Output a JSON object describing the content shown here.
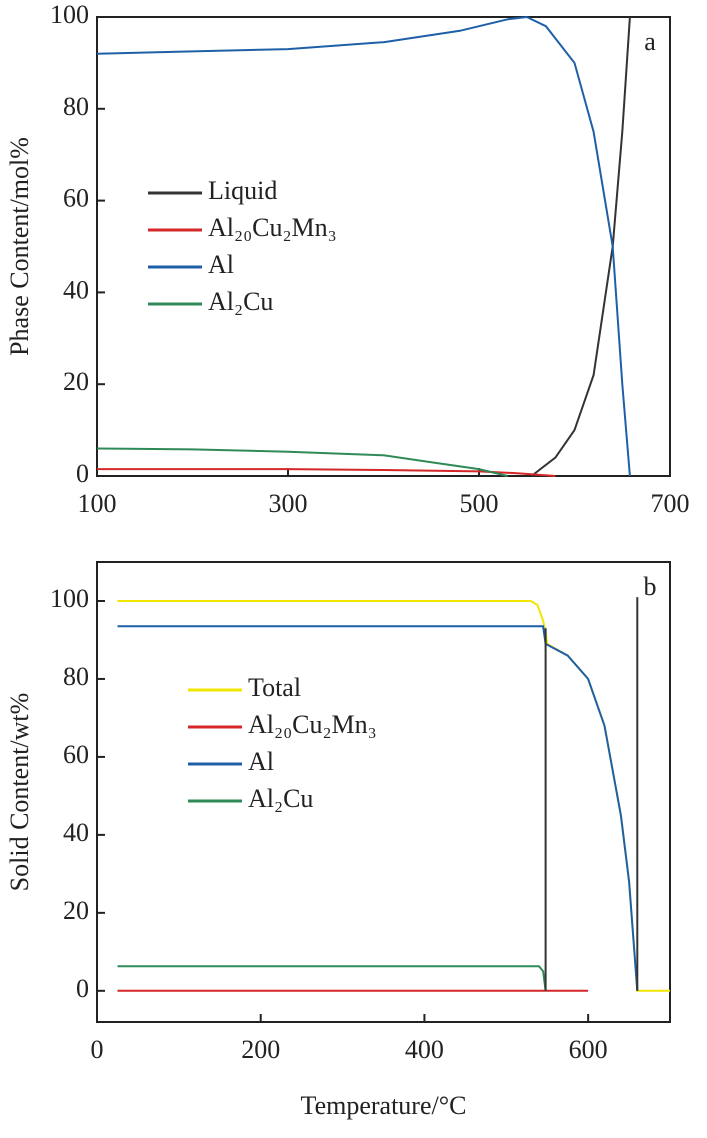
{
  "chart_data": [
    {
      "type": "line",
      "annotation": "a",
      "ylabel": "Phase Content/mol%",
      "xlim": [
        100,
        700
      ],
      "xticks": [
        100,
        300,
        500,
        700
      ],
      "ylim": [
        0,
        100
      ],
      "yticks": [
        0,
        20,
        40,
        60,
        80,
        100
      ],
      "series": [
        {
          "name": "Liquid",
          "color": "#333333",
          "x": [
            555,
            580,
            600,
            620,
            640,
            650,
            658
          ],
          "values": [
            0,
            4,
            10,
            22,
            50,
            75,
            100
          ]
        },
        {
          "name": "Al₂₀Cu₂Mn₃",
          "color": "#d62728",
          "x": [
            100,
            300,
            400,
            500,
            540,
            580
          ],
          "values": [
            1.5,
            1.5,
            1.3,
            1,
            0.6,
            0
          ]
        },
        {
          "name": "Al",
          "color": "#1f5fa8",
          "x": [
            100,
            200,
            300,
            400,
            480,
            530,
            550,
            570,
            600,
            620,
            640,
            650,
            658
          ],
          "values": [
            92,
            92.5,
            93,
            94.5,
            97,
            99.5,
            100,
            98,
            90,
            75,
            50,
            20,
            0
          ]
        },
        {
          "name": "Al₂Cu",
          "color": "#2e8b57",
          "x": [
            100,
            200,
            300,
            400,
            450,
            500,
            530
          ],
          "values": [
            6,
            5.8,
            5.3,
            4.5,
            3,
            1.5,
            0
          ]
        }
      ]
    },
    {
      "type": "line",
      "annotation": "b",
      "ylabel": "Solid Content/wt%",
      "xlabel": "Temperature/°C",
      "xlim": [
        0,
        700
      ],
      "xticks": [
        0,
        200,
        400,
        600
      ],
      "ylim": [
        -8,
        110
      ],
      "yticks": [
        0,
        20,
        40,
        60,
        80,
        100
      ],
      "series": [
        {
          "name": "Total",
          "color": "#f2e600",
          "x": [
            25,
            530,
            538,
            545,
            548,
            550,
            575,
            600,
            620,
            640,
            650,
            660,
            700
          ],
          "values": [
            100,
            100,
            99,
            95,
            92,
            89,
            86,
            80,
            68,
            45,
            28,
            0,
            0
          ]
        },
        {
          "name": "Al₂₀Cu₂Mn₃",
          "color": "#d62728",
          "x": [
            25,
            600
          ],
          "values": [
            0,
            0
          ]
        },
        {
          "name": "Al",
          "color": "#1f5fa8",
          "x": [
            25,
            545,
            548,
            575,
            600,
            620,
            640,
            650,
            660
          ],
          "values": [
            93.5,
            93.5,
            89,
            86,
            80,
            68,
            45,
            28,
            0
          ]
        },
        {
          "name": "Al₂Cu",
          "color": "#2e8b57",
          "x": [
            25,
            540,
            545,
            548
          ],
          "values": [
            6.3,
            6.3,
            5,
            0
          ]
        },
        {
          "color": "#333333",
          "x": [
            548,
            548
          ],
          "values": [
            93,
            0
          ]
        },
        {
          "color": "#333333",
          "x": [
            660,
            660
          ],
          "values": [
            0,
            101
          ]
        }
      ]
    }
  ]
}
